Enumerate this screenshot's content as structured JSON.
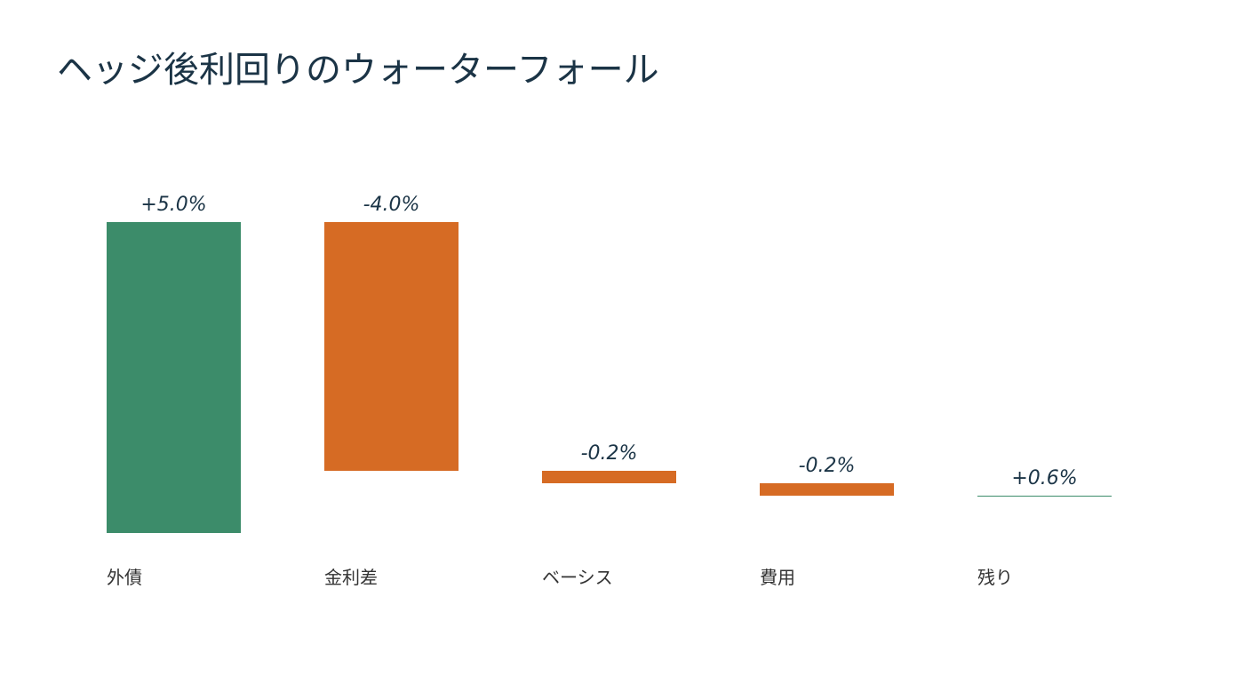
{
  "chart_data": {
    "type": "waterfall",
    "title": "ヘッジ後利回りのウォーターフォール",
    "categories": [
      "外債",
      "金利差",
      "ベーシス",
      "費用",
      "残り"
    ],
    "values": [
      5.0,
      -4.0,
      -0.2,
      -0.2,
      0.6
    ],
    "value_labels": [
      "+5.0%",
      "-4.0%",
      "-0.2%",
      "-0.2%",
      "+0.6%"
    ],
    "colors": [
      "#3c8c6a",
      "#d66b24",
      "#d66b24",
      "#d66b24",
      "#3c8c6a"
    ]
  }
}
